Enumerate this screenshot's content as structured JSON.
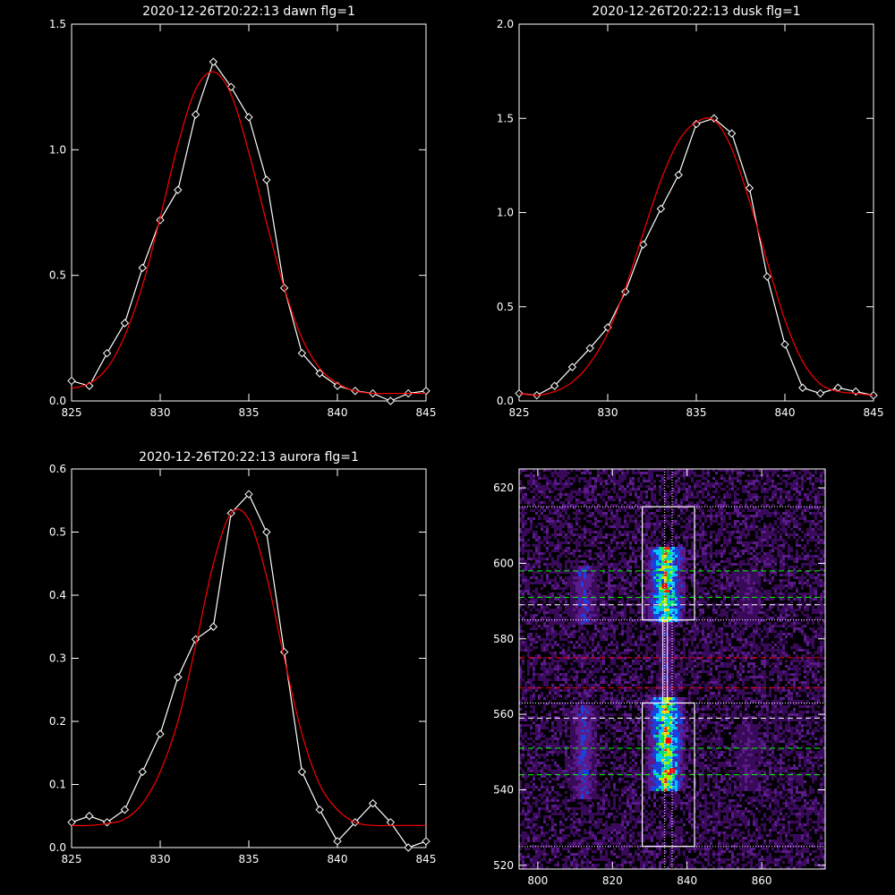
{
  "chart_data": [
    {
      "type": "line",
      "title": "2020-12-26T20:22:13 dawn flg=1",
      "xlim": [
        825,
        845
      ],
      "ylim": [
        0,
        1.5
      ],
      "xticks": [
        "825",
        "830",
        "835",
        "840",
        "845"
      ],
      "yticks": [
        "0.0",
        "0.5",
        "1.0",
        "1.5"
      ],
      "series": [
        {
          "color": "#ffffff",
          "marker": "diamond",
          "x": [
            825,
            826,
            827,
            828,
            829,
            830,
            831,
            832,
            833,
            834,
            835,
            836,
            837,
            838,
            839,
            840,
            841,
            842,
            843,
            844,
            845
          ],
          "y": [
            0.08,
            0.06,
            0.19,
            0.31,
            0.53,
            0.72,
            0.84,
            1.14,
            1.35,
            1.25,
            1.13,
            0.88,
            0.45,
            0.19,
            0.11,
            0.06,
            0.04,
            0.03,
            0.0,
            0.03,
            0.04
          ]
        },
        {
          "color": "#ff0000",
          "fit": "gaussian",
          "x": [
            825,
            826,
            827,
            828,
            829,
            830,
            831,
            832,
            833,
            834,
            835,
            836,
            837,
            838,
            839,
            840,
            841,
            842,
            843,
            844,
            845
          ],
          "y": [
            0.05,
            0.07,
            0.13,
            0.26,
            0.46,
            0.73,
            1.02,
            1.24,
            1.31,
            1.22,
            0.99,
            0.71,
            0.45,
            0.25,
            0.13,
            0.07,
            0.04,
            0.03,
            0.03,
            0.03,
            0.03
          ]
        }
      ]
    },
    {
      "type": "line",
      "title": "2020-12-26T20:22:13 dusk flg=1",
      "xlim": [
        825,
        845
      ],
      "ylim": [
        0,
        2.0
      ],
      "xticks": [
        "825",
        "830",
        "835",
        "840",
        "845"
      ],
      "yticks": [
        "0.0",
        "0.5",
        "1.0",
        "1.5",
        "2.0"
      ],
      "series": [
        {
          "color": "#ffffff",
          "marker": "diamond",
          "x": [
            825,
            826,
            827,
            828,
            829,
            830,
            831,
            832,
            833,
            834,
            835,
            836,
            837,
            838,
            839,
            840,
            841,
            842,
            843,
            844,
            845
          ],
          "y": [
            0.04,
            0.03,
            0.08,
            0.18,
            0.28,
            0.39,
            0.58,
            0.83,
            1.02,
            1.2,
            1.47,
            1.5,
            1.42,
            1.13,
            0.66,
            0.3,
            0.07,
            0.04,
            0.07,
            0.05,
            0.03
          ]
        },
        {
          "color": "#ff0000",
          "fit": "gaussian",
          "x": [
            825,
            826,
            827,
            828,
            829,
            830,
            831,
            832,
            833,
            834,
            835,
            836,
            837,
            838,
            839,
            840,
            841,
            842,
            843,
            844,
            845
          ],
          "y": [
            0.04,
            0.03,
            0.05,
            0.1,
            0.2,
            0.36,
            0.6,
            0.89,
            1.17,
            1.38,
            1.48,
            1.49,
            1.34,
            1.06,
            0.74,
            0.43,
            0.21,
            0.09,
            0.05,
            0.04,
            0.03
          ]
        }
      ]
    },
    {
      "type": "line",
      "title": "2020-12-26T20:22:13 aurora flg=1",
      "xlim": [
        825,
        845
      ],
      "ylim": [
        0,
        0.6
      ],
      "xticks": [
        "825",
        "830",
        "835",
        "840",
        "845"
      ],
      "yticks": [
        "0.0",
        "0.1",
        "0.2",
        "0.3",
        "0.4",
        "0.5",
        "0.6"
      ],
      "series": [
        {
          "color": "#ffffff",
          "marker": "diamond",
          "x": [
            825,
            826,
            827,
            828,
            829,
            830,
            831,
            832,
            833,
            834,
            835,
            836,
            837,
            838,
            839,
            840,
            841,
            842,
            843,
            844,
            845
          ],
          "y": [
            0.04,
            0.05,
            0.04,
            0.06,
            0.12,
            0.18,
            0.27,
            0.33,
            0.35,
            0.53,
            0.56,
            0.5,
            0.31,
            0.12,
            0.06,
            0.01,
            0.04,
            0.07,
            0.04,
            0.0,
            0.01
          ]
        },
        {
          "color": "#ff0000",
          "fit": "gaussian",
          "x": [
            825,
            826,
            827,
            828,
            829,
            830,
            831,
            832,
            833,
            834,
            835,
            836,
            837,
            838,
            839,
            840,
            841,
            842,
            843,
            844,
            845
          ],
          "y": [
            0.035,
            0.035,
            0.038,
            0.045,
            0.07,
            0.12,
            0.2,
            0.32,
            0.45,
            0.53,
            0.52,
            0.43,
            0.3,
            0.18,
            0.1,
            0.06,
            0.04,
            0.035,
            0.035,
            0.035,
            0.035
          ]
        }
      ]
    },
    {
      "type": "heatmap",
      "xlim": [
        795,
        877
      ],
      "ylim": [
        519,
        625
      ],
      "xticks": [
        "800",
        "820",
        "840",
        "860"
      ],
      "yticks": [
        "520",
        "540",
        "560",
        "580",
        "600",
        "620"
      ],
      "bands": [
        {
          "x_center": 812,
          "x_width": 6,
          "y_ranges": [
            [
              584,
              600
            ],
            [
              538,
              563
            ]
          ],
          "intensity": 0.55
        },
        {
          "x_center": 834,
          "x_width": 8,
          "y_ranges": [
            [
              585,
              605
            ],
            [
              540,
              565
            ]
          ],
          "intensity": 1.0
        },
        {
          "x_center": 834,
          "x_width": 4,
          "y_ranges": [
            [
              563,
              585
            ]
          ],
          "intensity": 0.45
        },
        {
          "x_center": 856,
          "x_width": 6,
          "y_ranges": [
            [
              584,
              598
            ],
            [
              540,
              558
            ]
          ],
          "intensity": 0.35
        }
      ],
      "hotspots": [
        {
          "x": 834,
          "y": 594,
          "color": "#ff0000"
        },
        {
          "x": 835,
          "y": 553,
          "color": "#ff0000"
        },
        {
          "x": 836,
          "y": 545,
          "color": "#ff0000"
        }
      ],
      "boxes": [
        {
          "x0": 828,
          "x1": 842,
          "y0": 585,
          "y1": 615
        },
        {
          "x0": 828,
          "x1": 842,
          "y0": 525,
          "y1": 563
        }
      ],
      "hlines": [
        {
          "y": 615,
          "color": "#ffffff",
          "style": "dotted"
        },
        {
          "y": 598,
          "color": "#00ff00",
          "style": "dashed"
        },
        {
          "y": 591,
          "color": "#00ff00",
          "style": "dashed"
        },
        {
          "y": 589,
          "color": "#ffffff",
          "style": "dashed"
        },
        {
          "y": 585,
          "color": "#ffffff",
          "style": "dotted"
        },
        {
          "y": 575,
          "color": "#ff0000",
          "style": "dashed"
        },
        {
          "y": 567,
          "color": "#ff0000",
          "style": "dashed"
        },
        {
          "y": 563,
          "color": "#ffffff",
          "style": "dotted"
        },
        {
          "y": 559,
          "color": "#ffffff",
          "style": "dashed"
        },
        {
          "y": 551,
          "color": "#00ff00",
          "style": "dashed"
        },
        {
          "y": 544,
          "color": "#00ff00",
          "style": "dashed"
        },
        {
          "y": 525,
          "color": "#ffffff",
          "style": "dotted"
        }
      ],
      "vlines": [
        {
          "x": 834,
          "color": "#ffffff",
          "style": "dotted"
        },
        {
          "x": 836,
          "color": "#ffffff",
          "style": "dotted"
        }
      ]
    }
  ]
}
